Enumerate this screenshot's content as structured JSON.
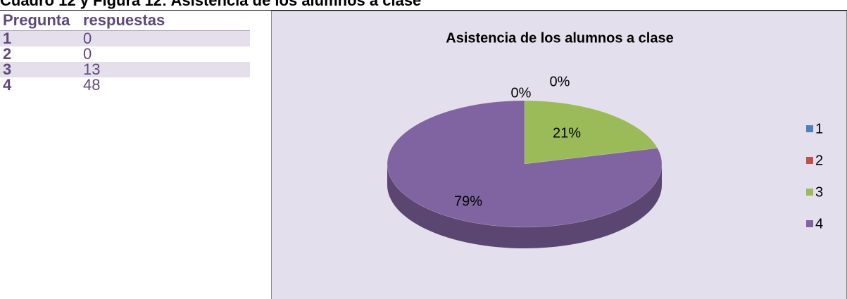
{
  "heading": "Cuadro 12 y Figura 12: Asistencia de los alumnos a clase",
  "table": {
    "header": [
      "Pregunta",
      "respuestas"
    ],
    "rows": [
      [
        1,
        0
      ],
      [
        2,
        0
      ],
      [
        3,
        13
      ],
      [
        4,
        48
      ]
    ]
  },
  "chart_data": {
    "type": "pie",
    "title": "Asistencia de los alumnos a clase",
    "categories": [
      "1",
      "2",
      "3",
      "4"
    ],
    "values": [
      0,
      0,
      21,
      79
    ],
    "value_labels": [
      "0%",
      "0%",
      "21%",
      "79%"
    ],
    "colors": [
      "#4f81bd",
      "#c0504d",
      "#9bbb59",
      "#8064a2"
    ],
    "legend": "right"
  }
}
